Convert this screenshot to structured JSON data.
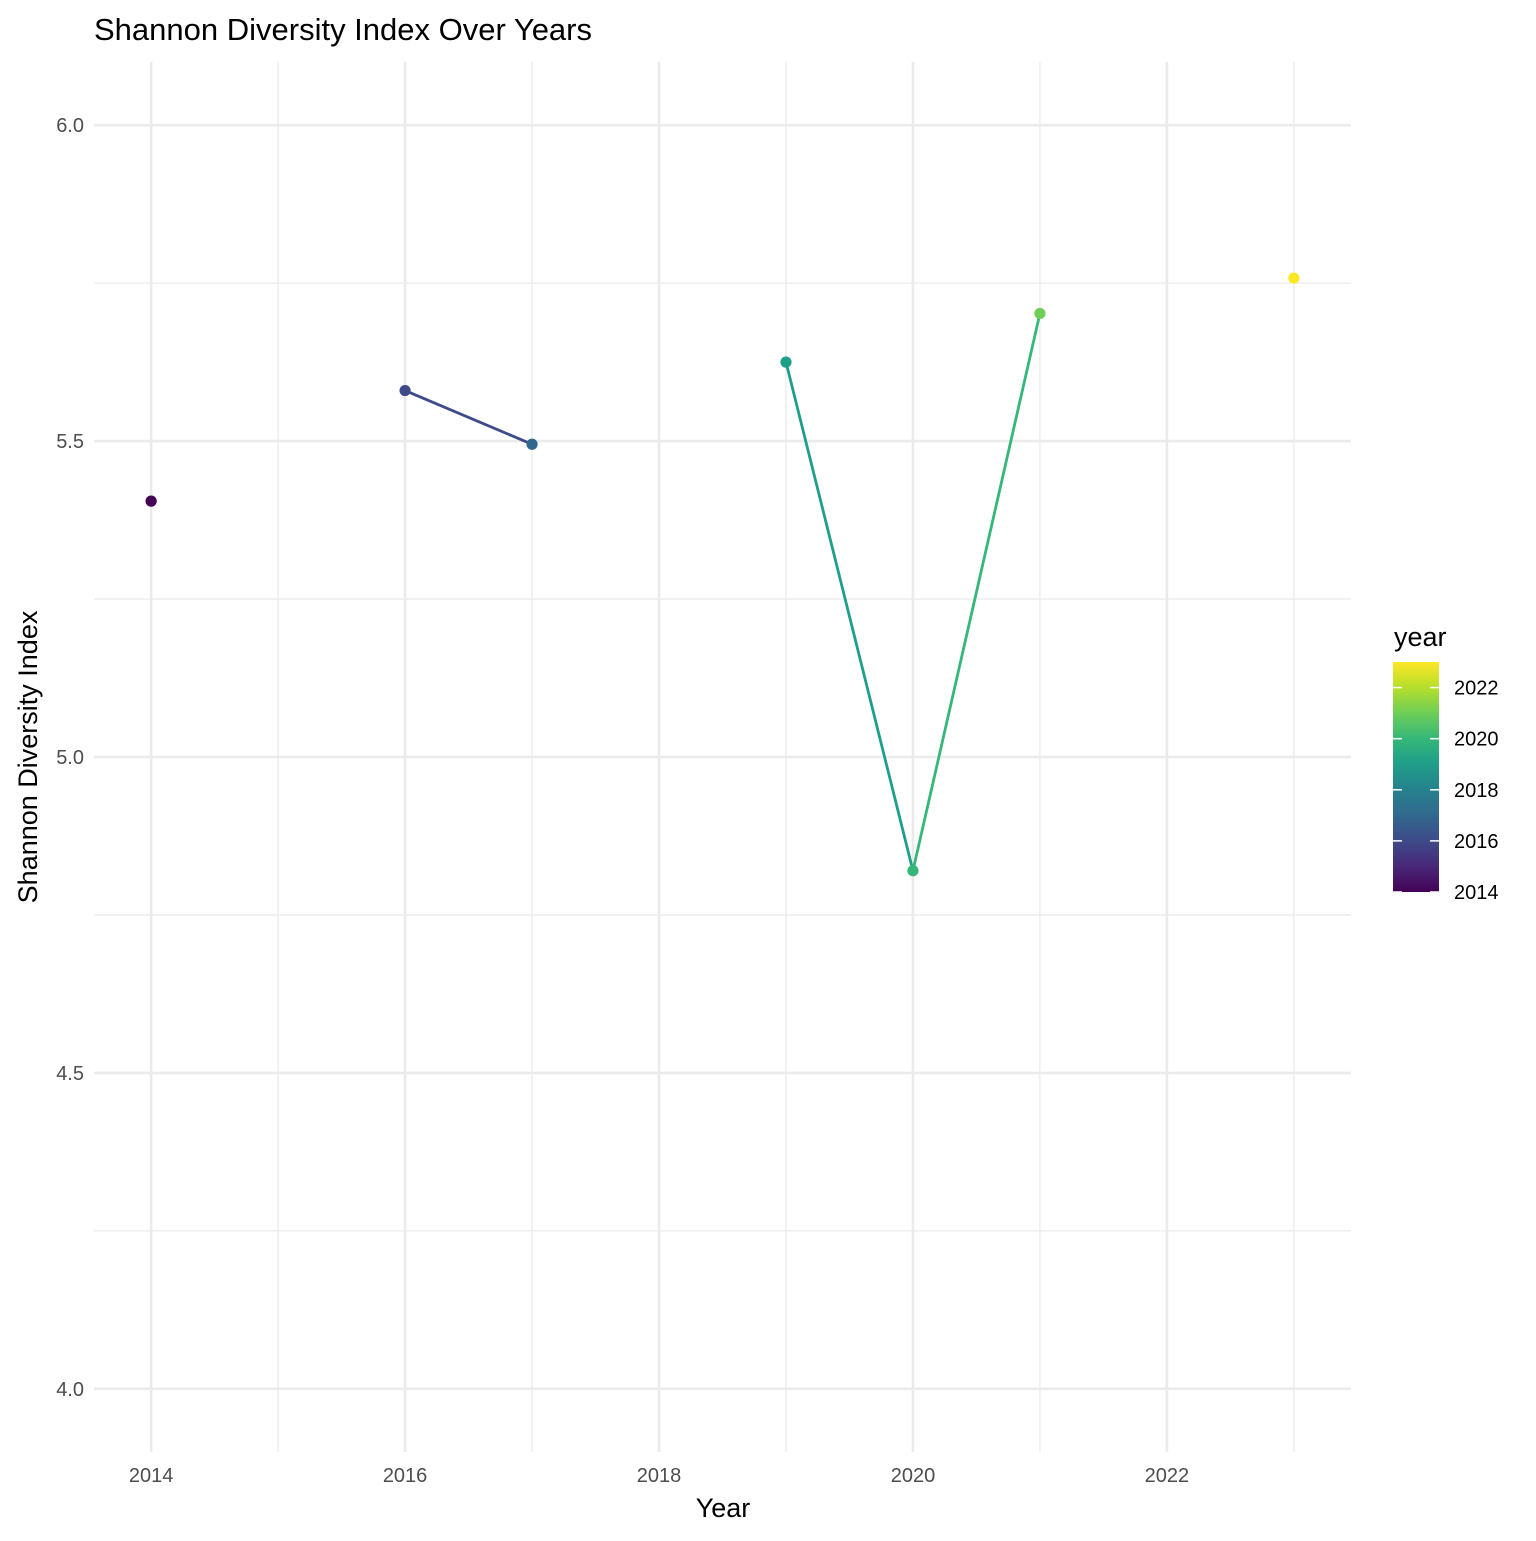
{
  "chart_data": {
    "type": "line",
    "title": "Shannon Diversity Index Over Years",
    "xlabel": "Year",
    "ylabel": "Shannon Diversity Index",
    "xlim": [
      2013.55,
      2023.45
    ],
    "ylim": [
      3.9,
      6.1
    ],
    "x_ticks": [
      2014,
      2016,
      2018,
      2020,
      2022
    ],
    "x_tick_labels": [
      "2014",
      "2016",
      "2018",
      "2020",
      "2022"
    ],
    "x_minor_ticks": [
      2015,
      2017,
      2019,
      2021,
      2023
    ],
    "y_ticks": [
      4.0,
      4.5,
      5.0,
      5.5,
      6.0
    ],
    "y_tick_labels": [
      "4.0",
      "4.5",
      "5.0",
      "5.5",
      "6.0"
    ],
    "y_minor_ticks": [
      4.25,
      4.75,
      5.25,
      5.75
    ],
    "grid": true,
    "points": [
      {
        "x": 2014,
        "y": 5.405
      },
      {
        "x": 2016,
        "y": 5.58
      },
      {
        "x": 2017,
        "y": 5.495
      },
      {
        "x": 2019,
        "y": 5.625
      },
      {
        "x": 2020,
        "y": 4.82
      },
      {
        "x": 2021,
        "y": 5.702
      },
      {
        "x": 2023,
        "y": 5.758
      }
    ],
    "line_segments": [
      [
        2016,
        2017
      ],
      [
        2019,
        2020
      ],
      [
        2020,
        2021
      ]
    ],
    "color_mapping": "viridis",
    "legend": {
      "title": "year",
      "placement": "right",
      "range": [
        2014,
        2023
      ],
      "tick_values": [
        2014,
        2016,
        2018,
        2020,
        2022
      ],
      "tick_labels": [
        "2014",
        "2016",
        "2018",
        "2020",
        "2022"
      ]
    },
    "colors": {
      "viridis_stops": [
        "#440154",
        "#482878",
        "#3e4a89",
        "#31688e",
        "#26828e",
        "#1f9e89",
        "#35b779",
        "#6ece58",
        "#b5de2b",
        "#fde725"
      ],
      "grid": "#ebebeb",
      "tick_label": "#4d4d4d",
      "background": "#ffffff"
    }
  }
}
